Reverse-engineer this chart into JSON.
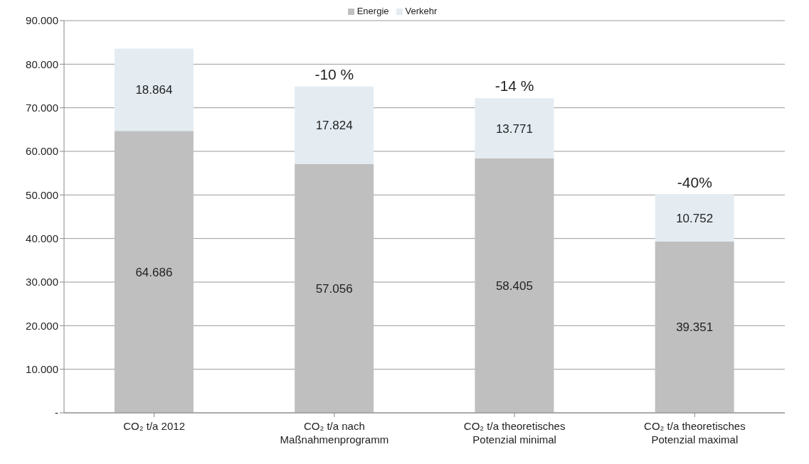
{
  "chart_data": {
    "type": "bar",
    "stacked": true,
    "categories": [
      "CO₂ t/a 2012",
      "CO₂ t/a nach Maßnahmenprogramm",
      "CO₂ t/a theoretisches Potenzial minimal",
      "CO₂ t/a theoretisches Potenzial maximal"
    ],
    "series": [
      {
        "name": "Energie",
        "color": "#bfbfbf",
        "values": [
          64686,
          57056,
          58405,
          39351
        ],
        "value_labels": [
          "64.686",
          "57.056",
          "58.405",
          "39.351"
        ]
      },
      {
        "name": "Verkehr",
        "color": "#e4ecf2",
        "values": [
          18864,
          17824,
          13771,
          10752
        ],
        "value_labels": [
          "18.864",
          "17.824",
          "13.771",
          "10.752"
        ]
      }
    ],
    "ylim": [
      0,
      90000
    ],
    "yticks": [
      {
        "value": 0,
        "label": "-"
      },
      {
        "value": 10000,
        "label": "10.000"
      },
      {
        "value": 20000,
        "label": "20.000"
      },
      {
        "value": 30000,
        "label": "30.000"
      },
      {
        "value": 40000,
        "label": "40.000"
      },
      {
        "value": 50000,
        "label": "50.000"
      },
      {
        "value": 60000,
        "label": "60.000"
      },
      {
        "value": 70000,
        "label": "70.000"
      },
      {
        "value": 80000,
        "label": "80.000"
      },
      {
        "value": 90000,
        "label": "90.000"
      }
    ],
    "annotations": [
      {
        "text": "-10 %",
        "x": "CO₂ t/a nach Maßnahmenprogramm",
        "y": 74880
      },
      {
        "text": "-14 %",
        "x": "CO₂ t/a theoretisches Potenzial minimal",
        "y": 72176
      },
      {
        "text": "-40%",
        "x": "CO₂ t/a theoretisches Potenzial maximal",
        "y": 50103
      }
    ],
    "grid": "y",
    "legend": "top"
  }
}
